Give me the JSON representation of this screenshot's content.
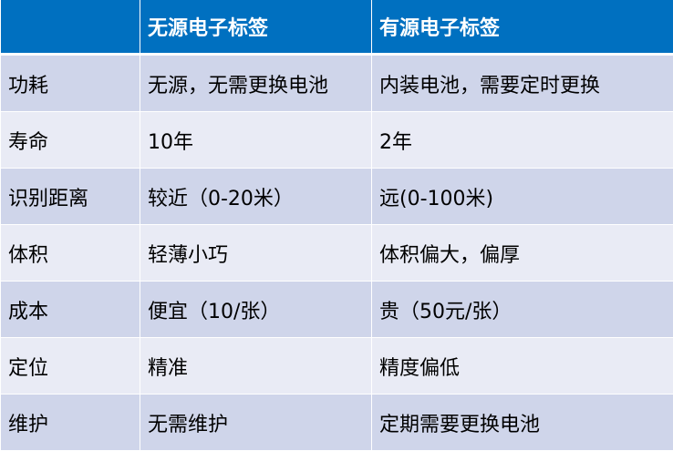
{
  "table": {
    "headers": [
      "",
      "无源电子标签",
      "有源电子标签"
    ],
    "rows": [
      [
        "功耗",
        "无源，无需更换电池",
        "内装电池，需要定时更换"
      ],
      [
        "寿命",
        "10年",
        "2年"
      ],
      [
        "识别距离",
        "较近（0-20米）",
        "远(0-100米)"
      ],
      [
        "体积",
        "轻薄小巧",
        "体积偏大，偏厚"
      ],
      [
        "成本",
        "便宜（10/张）",
        "贵（50元/张）"
      ],
      [
        "定位",
        "精准",
        "精度偏低"
      ],
      [
        "维护",
        "无需维护",
        "定期需要更换电池"
      ]
    ]
  },
  "colors": {
    "header": "#0070C0",
    "row_dark": "#CFD5EA",
    "row_light": "#E9EBF5"
  }
}
